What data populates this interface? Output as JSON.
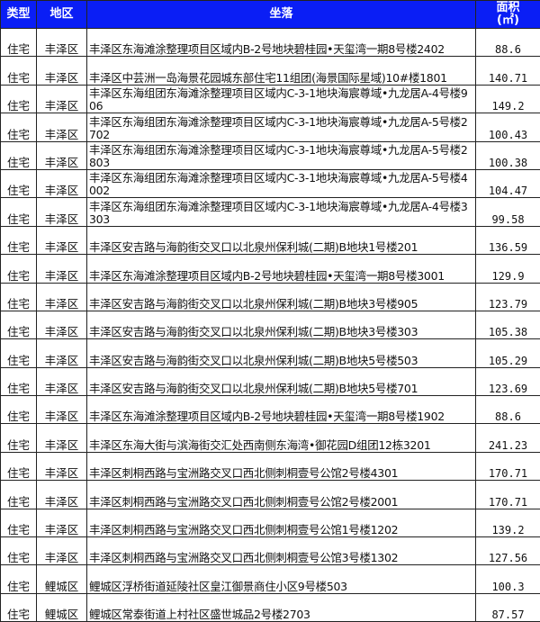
{
  "header": {
    "type": "类型",
    "district": "地区",
    "address": "坐落",
    "area_line1": "面积",
    "area_line2": "(㎡)"
  },
  "rows": [
    {
      "type": "住宅",
      "district": "丰泽区",
      "address": "丰泽区东海滩涂整理项目区域内B-2号地块碧桂园•天玺湾一期8号楼2402",
      "area": "88.6"
    },
    {
      "type": "住宅",
      "district": "丰泽区",
      "address": "丰泽区中芸洲一岛海景花园城东部住宅11组团(海景国际星域)10#楼1801",
      "area": "140.71"
    },
    {
      "type": "住宅",
      "district": "丰泽区",
      "address": "丰泽区东海组团东海滩涂整理项目区域内C-3-1地块海宸尊域•九龙居A-4号楼906",
      "area": "149.2"
    },
    {
      "type": "住宅",
      "district": "丰泽区",
      "address": "丰泽区东海组团东海滩涂整理项目区域内C-3-1地块海宸尊域•九龙居A-5号楼2702",
      "area": "100.43"
    },
    {
      "type": "住宅",
      "district": "丰泽区",
      "address": "丰泽区东海组团东海滩涂整理项目区域内C-3-1地块海宸尊域•九龙居A-5号楼2803",
      "area": "100.38"
    },
    {
      "type": "住宅",
      "district": "丰泽区",
      "address": "丰泽区东海组团东海滩涂整理项目区域内C-3-1地块海宸尊域•九龙居A-5号楼4002",
      "area": "104.47"
    },
    {
      "type": "住宅",
      "district": "丰泽区",
      "address": "丰泽区东海组团东海滩涂整理项目区域内C-3-1地块海宸尊域•九龙居A-4号楼3303",
      "area": "99.58"
    },
    {
      "type": "住宅",
      "district": "丰泽区",
      "address": "丰泽区安吉路与海韵街交叉口以北泉州保利城(二期)B地块1号楼201",
      "area": "136.59"
    },
    {
      "type": "住宅",
      "district": "丰泽区",
      "address": "丰泽区东海滩涂整理项目区域内B-2号地块碧桂园•天玺湾一期8号楼3001",
      "area": "129.9"
    },
    {
      "type": "住宅",
      "district": "丰泽区",
      "address": "丰泽区安吉路与海韵街交叉口以北泉州保利城(二期)B地块3号楼905",
      "area": "123.79"
    },
    {
      "type": "住宅",
      "district": "丰泽区",
      "address": "丰泽区安吉路与海韵街交叉口以北泉州保利城(二期)B地块3号楼303",
      "area": "105.38"
    },
    {
      "type": "住宅",
      "district": "丰泽区",
      "address": "丰泽区安吉路与海韵街交叉口以北泉州保利城(二期)B地块5号楼503",
      "area": "105.29"
    },
    {
      "type": "住宅",
      "district": "丰泽区",
      "address": "丰泽区安吉路与海韵街交叉口以北泉州保利城(二期)B地块5号楼701",
      "area": "123.69"
    },
    {
      "type": "住宅",
      "district": "丰泽区",
      "address": "丰泽区东海滩涂整理项目区域内B-2号地块碧桂园•天玺湾一期8号楼1902",
      "area": "88.6"
    },
    {
      "type": "住宅",
      "district": "丰泽区",
      "address": "丰泽区东海大街与滨海街交汇处西南侧东海湾•御花园D组团12栋3201",
      "area": "241.23"
    },
    {
      "type": "住宅",
      "district": "丰泽区",
      "address": "丰泽区刺桐西路与宝洲路交叉口西北侧刺桐壹号公馆2号楼4301",
      "area": "170.71"
    },
    {
      "type": "住宅",
      "district": "丰泽区",
      "address": "丰泽区刺桐西路与宝洲路交叉口西北侧刺桐壹号公馆2号楼2001",
      "area": "170.71"
    },
    {
      "type": "住宅",
      "district": "丰泽区",
      "address": "丰泽区刺桐西路与宝洲路交叉口西北侧刺桐壹号公馆1号楼1202",
      "area": "139.2"
    },
    {
      "type": "住宅",
      "district": "丰泽区",
      "address": "丰泽区刺桐西路与宝洲路交叉口西北侧刺桐壹号公馆3号楼1302",
      "area": "127.56"
    },
    {
      "type": "住宅",
      "district": "鲤城区",
      "address": "鲤城区浮桥街道延陵社区皇江御景商住小区9号楼503",
      "area": "100.3"
    },
    {
      "type": "住宅",
      "district": "鲤城区",
      "address": "鲤城区常泰街道上村社区盛世城品2号楼2703",
      "area": "87.57"
    }
  ]
}
